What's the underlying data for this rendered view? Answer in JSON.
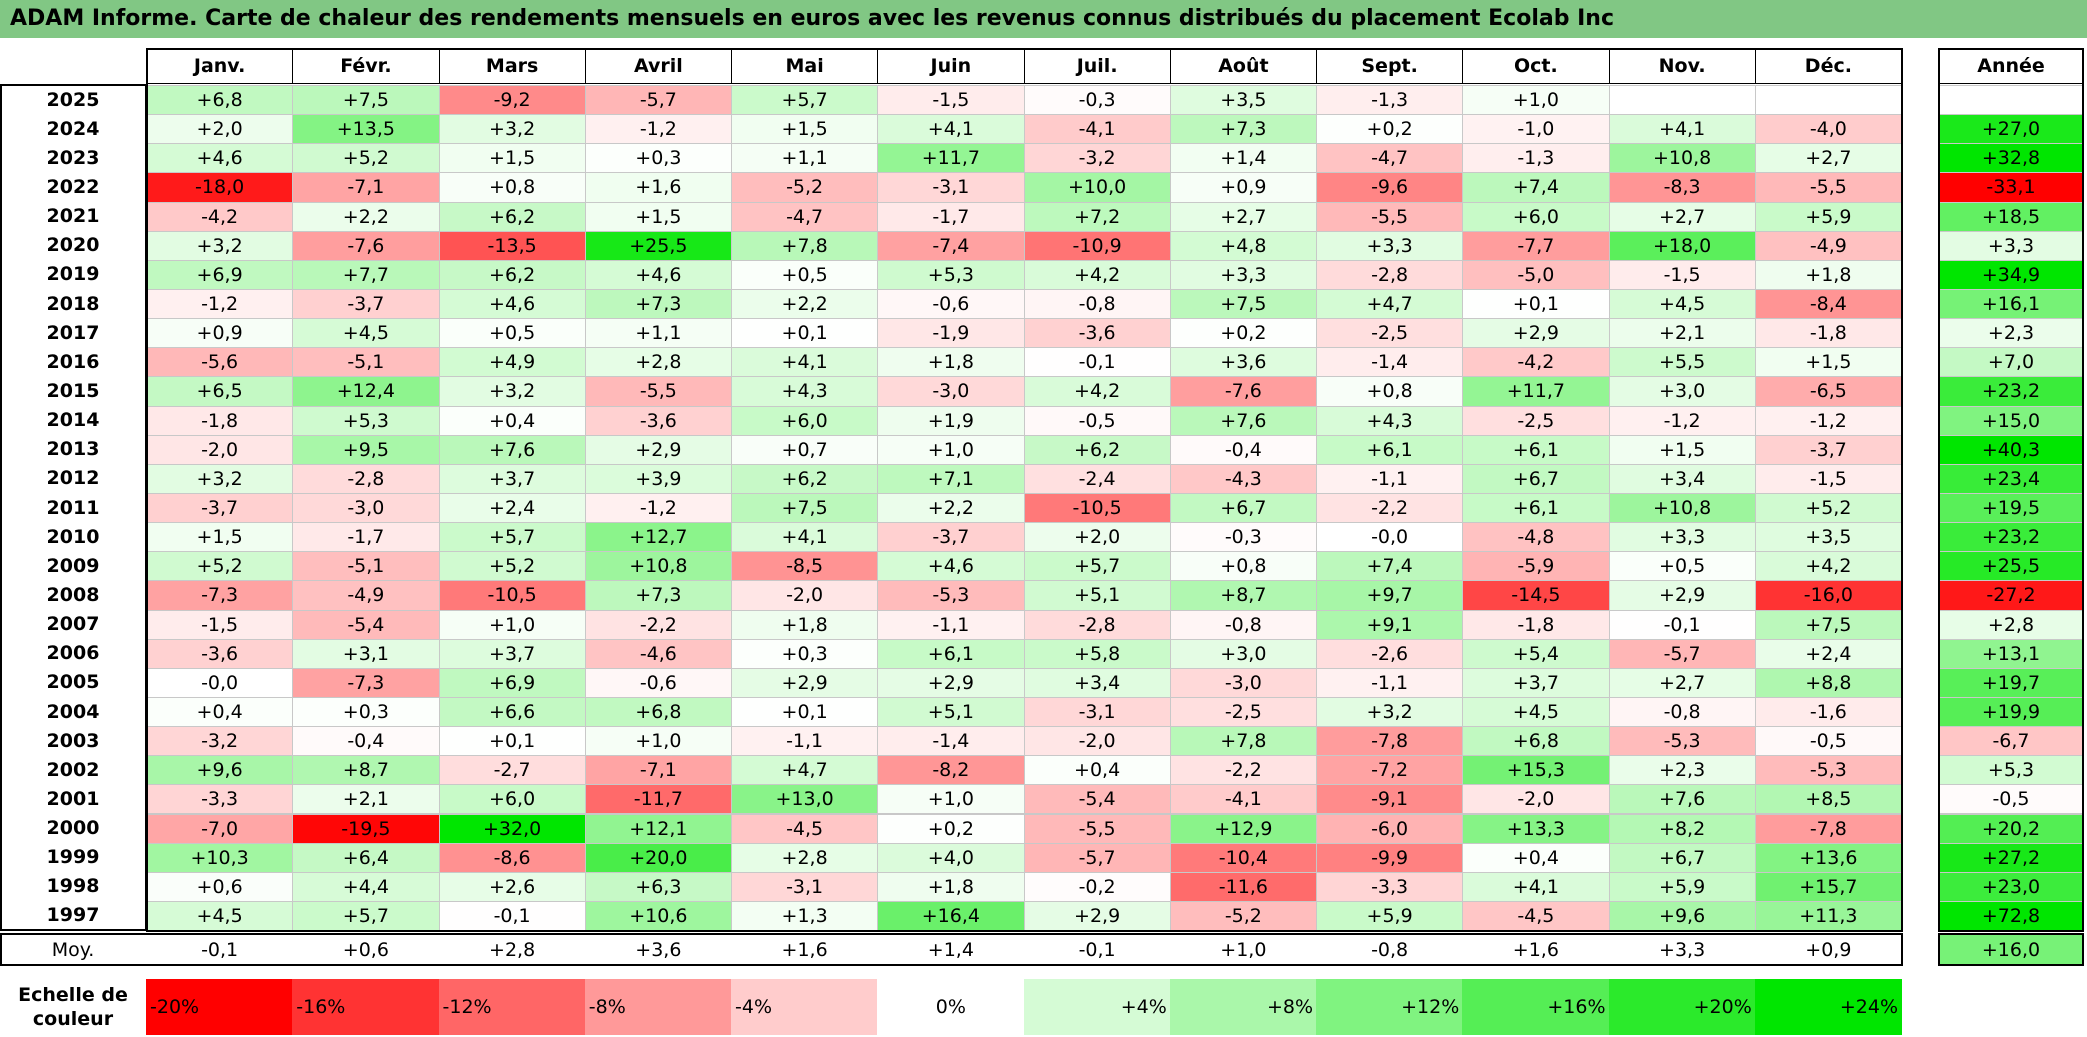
{
  "title": "ADAM Informe. Carte de chaleur des rendements mensuels en euros avec les revenus connus distribués du placement Ecolab Inc",
  "months": [
    "Janv.",
    "Févr.",
    "Mars",
    "Avril",
    "Mai",
    "Juin",
    "Juil.",
    "Août",
    "Sept.",
    "Oct.",
    "Nov.",
    "Déc."
  ],
  "year_header": "Année",
  "avg_label": "Moy.",
  "scale_title": "Echelle de couleur",
  "chart_data": {
    "type": "heatmap",
    "title": "ADAM Informe. Carte de chaleur des rendements mensuels en euros avec les revenus connus distribués du placement Ecolab Inc",
    "x_categories": [
      "Janv.",
      "Févr.",
      "Mars",
      "Avril",
      "Mai",
      "Juin",
      "Juil.",
      "Août",
      "Sept.",
      "Oct.",
      "Nov.",
      "Déc."
    ],
    "rows": [
      {
        "year": "2025",
        "values": [
          "+6,8",
          "+7,5",
          "-9,2",
          "-5,7",
          "+5,7",
          "-1,5",
          "-0,3",
          "+3,5",
          "-1,3",
          "+1,0",
          "",
          ""
        ],
        "annual": ""
      },
      {
        "year": "2024",
        "values": [
          "+2,0",
          "+13,5",
          "+3,2",
          "-1,2",
          "+1,5",
          "+4,1",
          "-4,1",
          "+7,3",
          "+0,2",
          "-1,0",
          "+4,1",
          "-4,0"
        ],
        "annual": "+27,0"
      },
      {
        "year": "2023",
        "values": [
          "+4,6",
          "+5,2",
          "+1,5",
          "+0,3",
          "+1,1",
          "+11,7",
          "-3,2",
          "+1,4",
          "-4,7",
          "-1,3",
          "+10,8",
          "+2,7"
        ],
        "annual": "+32,8"
      },
      {
        "year": "2022",
        "values": [
          "-18,0",
          "-7,1",
          "+0,8",
          "+1,6",
          "-5,2",
          "-3,1",
          "+10,0",
          "+0,9",
          "-9,6",
          "+7,4",
          "-8,3",
          "-5,5"
        ],
        "annual": "-33,1"
      },
      {
        "year": "2021",
        "values": [
          "-4,2",
          "+2,2",
          "+6,2",
          "+1,5",
          "-4,7",
          "-1,7",
          "+7,2",
          "+2,7",
          "-5,5",
          "+6,0",
          "+2,7",
          "+5,9"
        ],
        "annual": "+18,5"
      },
      {
        "year": "2020",
        "values": [
          "+3,2",
          "-7,6",
          "-13,5",
          "+25,5",
          "+7,8",
          "-7,4",
          "-10,9",
          "+4,8",
          "+3,3",
          "-7,7",
          "+18,0",
          "-4,9"
        ],
        "annual": "+3,3"
      },
      {
        "year": "2019",
        "values": [
          "+6,9",
          "+7,7",
          "+6,2",
          "+4,6",
          "+0,5",
          "+5,3",
          "+4,2",
          "+3,3",
          "-2,8",
          "-5,0",
          "-1,5",
          "+1,8"
        ],
        "annual": "+34,9"
      },
      {
        "year": "2018",
        "values": [
          "-1,2",
          "-3,7",
          "+4,6",
          "+7,3",
          "+2,2",
          "-0,6",
          "-0,8",
          "+7,5",
          "+4,7",
          "+0,1",
          "+4,5",
          "-8,4"
        ],
        "annual": "+16,1"
      },
      {
        "year": "2017",
        "values": [
          "+0,9",
          "+4,5",
          "+0,5",
          "+1,1",
          "+0,1",
          "-1,9",
          "-3,6",
          "+0,2",
          "-2,5",
          "+2,9",
          "+2,1",
          "-1,8"
        ],
        "annual": "+2,3"
      },
      {
        "year": "2016",
        "values": [
          "-5,6",
          "-5,1",
          "+4,9",
          "+2,8",
          "+4,1",
          "+1,8",
          "-0,1",
          "+3,6",
          "-1,4",
          "-4,2",
          "+5,5",
          "+1,5"
        ],
        "annual": "+7,0"
      },
      {
        "year": "2015",
        "values": [
          "+6,5",
          "+12,4",
          "+3,2",
          "-5,5",
          "+4,3",
          "-3,0",
          "+4,2",
          "-7,6",
          "+0,8",
          "+11,7",
          "+3,0",
          "-6,5"
        ],
        "annual": "+23,2"
      },
      {
        "year": "2014",
        "values": [
          "-1,8",
          "+5,3",
          "+0,4",
          "-3,6",
          "+6,0",
          "+1,9",
          "-0,5",
          "+7,6",
          "+4,3",
          "-2,5",
          "-1,2",
          "-1,2"
        ],
        "annual": "+15,0"
      },
      {
        "year": "2013",
        "values": [
          "-2,0",
          "+9,5",
          "+7,6",
          "+2,9",
          "+0,7",
          "+1,0",
          "+6,2",
          "-0,4",
          "+6,1",
          "+6,1",
          "+1,5",
          "-3,7"
        ],
        "annual": "+40,3"
      },
      {
        "year": "2012",
        "values": [
          "+3,2",
          "-2,8",
          "+3,7",
          "+3,9",
          "+6,2",
          "+7,1",
          "-2,4",
          "-4,3",
          "-1,1",
          "+6,7",
          "+3,4",
          "-1,5"
        ],
        "annual": "+23,4"
      },
      {
        "year": "2011",
        "values": [
          "-3,7",
          "-3,0",
          "+2,4",
          "-1,2",
          "+7,5",
          "+2,2",
          "-10,5",
          "+6,7",
          "-2,2",
          "+6,1",
          "+10,8",
          "+5,2"
        ],
        "annual": "+19,5"
      },
      {
        "year": "2010",
        "values": [
          "+1,5",
          "-1,7",
          "+5,7",
          "+12,7",
          "+4,1",
          "-3,7",
          "+2,0",
          "-0,3",
          "-0,0",
          "-4,8",
          "+3,3",
          "+3,5"
        ],
        "annual": "+23,2"
      },
      {
        "year": "2009",
        "values": [
          "+5,2",
          "-5,1",
          "+5,2",
          "+10,8",
          "-8,5",
          "+4,6",
          "+5,7",
          "+0,8",
          "+7,4",
          "-5,9",
          "+0,5",
          "+4,2"
        ],
        "annual": "+25,5"
      },
      {
        "year": "2008",
        "values": [
          "-7,3",
          "-4,9",
          "-10,5",
          "+7,3",
          "-2,0",
          "-5,3",
          "+5,1",
          "+8,7",
          "+9,7",
          "-14,5",
          "+2,9",
          "-16,0"
        ],
        "annual": "-27,2"
      },
      {
        "year": "2007",
        "values": [
          "-1,5",
          "-5,4",
          "+1,0",
          "-2,2",
          "+1,8",
          "-1,1",
          "-2,8",
          "-0,8",
          "+9,1",
          "-1,8",
          "-0,1",
          "+7,5"
        ],
        "annual": "+2,8"
      },
      {
        "year": "2006",
        "values": [
          "-3,6",
          "+3,1",
          "+3,7",
          "-4,6",
          "+0,3",
          "+6,1",
          "+5,8",
          "+3,0",
          "-2,6",
          "+5,4",
          "-5,7",
          "+2,4"
        ],
        "annual": "+13,1"
      },
      {
        "year": "2005",
        "values": [
          "-0,0",
          "-7,3",
          "+6,9",
          "-0,6",
          "+2,9",
          "+2,9",
          "+3,4",
          "-3,0",
          "-1,1",
          "+3,7",
          "+2,7",
          "+8,8"
        ],
        "annual": "+19,7"
      },
      {
        "year": "2004",
        "values": [
          "+0,4",
          "+0,3",
          "+6,6",
          "+6,8",
          "+0,1",
          "+5,1",
          "-3,1",
          "-2,5",
          "+3,2",
          "+4,5",
          "-0,8",
          "-1,6"
        ],
        "annual": "+19,9"
      },
      {
        "year": "2003",
        "values": [
          "-3,2",
          "-0,4",
          "+0,1",
          "+1,0",
          "-1,1",
          "-1,4",
          "-2,0",
          "+7,8",
          "-7,8",
          "+6,8",
          "-5,3",
          "-0,5"
        ],
        "annual": "-6,7"
      },
      {
        "year": "2002",
        "values": [
          "+9,6",
          "+8,7",
          "-2,7",
          "-7,1",
          "+4,7",
          "-8,2",
          "+0,4",
          "-2,2",
          "-7,2",
          "+15,3",
          "+2,3",
          "-5,3"
        ],
        "annual": "+5,3"
      },
      {
        "year": "2001",
        "values": [
          "-3,3",
          "+2,1",
          "+6,0",
          "-11,7",
          "+13,0",
          "+1,0",
          "-5,4",
          "-4,1",
          "-9,1",
          "-2,0",
          "+7,6",
          "+8,5"
        ],
        "annual": "-0,5"
      },
      {
        "year": "2000",
        "values": [
          "-7,0",
          "-19,5",
          "+32,0",
          "+12,1",
          "-4,5",
          "+0,2",
          "-5,5",
          "+12,9",
          "-6,0",
          "+13,3",
          "+8,2",
          "-7,8"
        ],
        "annual": "+20,2"
      },
      {
        "year": "1999",
        "values": [
          "+10,3",
          "+6,4",
          "-8,6",
          "+20,0",
          "+2,8",
          "+4,0",
          "-5,7",
          "-10,4",
          "-9,9",
          "+0,4",
          "+6,7",
          "+13,6"
        ],
        "annual": "+27,2"
      },
      {
        "year": "1998",
        "values": [
          "+0,6",
          "+4,4",
          "+2,6",
          "+6,3",
          "-3,1",
          "+1,8",
          "-0,2",
          "-11,6",
          "-3,3",
          "+4,1",
          "+5,9",
          "+15,7"
        ],
        "annual": "+23,0"
      },
      {
        "year": "1997",
        "values": [
          "+4,5",
          "+5,7",
          "-0,1",
          "+10,6",
          "+1,3",
          "+16,4",
          "+2,9",
          "-5,2",
          "+5,9",
          "-4,5",
          "+9,6",
          "+11,3"
        ],
        "annual": "+72,8"
      }
    ],
    "average": {
      "label": "Moy.",
      "values": [
        "-0,1",
        "+0,6",
        "+2,8",
        "+3,6",
        "+1,6",
        "+1,4",
        "-0,1",
        "+1,0",
        "-0,8",
        "+1,6",
        "+3,3",
        "+0,9"
      ],
      "annual": "+16,0"
    },
    "color_scale": {
      "labels": [
        "-20%",
        "-16%",
        "-12%",
        "-8%",
        "-4%",
        "0%",
        "+4%",
        "+8%",
        "+12%",
        "+16%",
        "+20%",
        "+24%"
      ],
      "stops": [
        -20,
        -16,
        -12,
        -8,
        -4,
        0,
        4,
        8,
        12,
        16,
        20,
        24
      ],
      "negative_color": "#ff0000",
      "positive_color": "#00e600",
      "neutral_color": "#ffffff"
    }
  }
}
